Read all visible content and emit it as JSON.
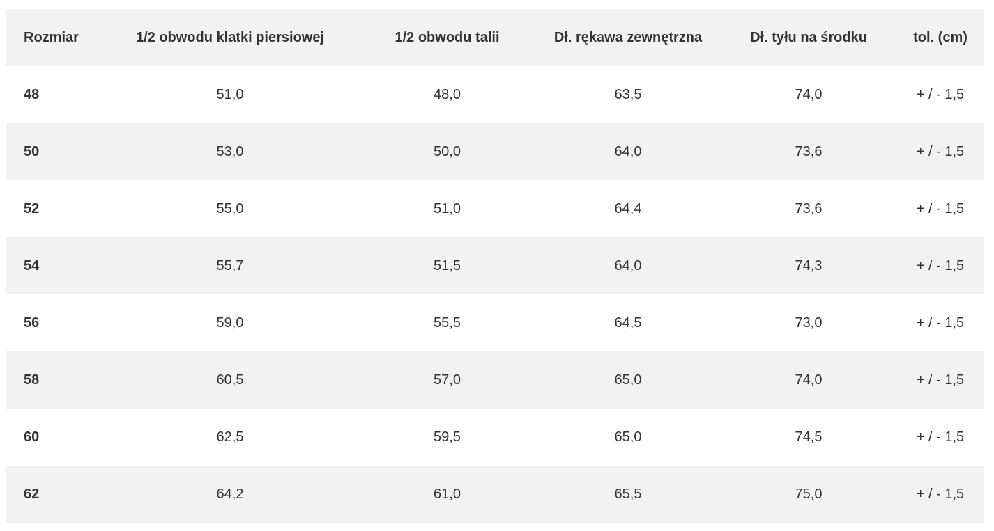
{
  "table": {
    "headers": [
      "Rozmiar",
      "1/2 obwodu klatki piersiowej",
      "1/2 obwodu talii",
      "Dł. rękawa zewnętrzna",
      "Dł. tyłu na środku",
      "tol. (cm)"
    ],
    "rows": [
      [
        "48",
        "51,0",
        "48,0",
        "63,5",
        "74,0",
        "+ / - 1,5"
      ],
      [
        "50",
        "53,0",
        "50,0",
        "64,0",
        "73,6",
        "+ / - 1,5"
      ],
      [
        "52",
        "55,0",
        "51,0",
        "64,4",
        "73,6",
        "+ / - 1,5"
      ],
      [
        "54",
        "55,7",
        "51,5",
        "64,0",
        "74,3",
        "+ / - 1,5"
      ],
      [
        "56",
        "59,0",
        "55,5",
        "64,5",
        "73,0",
        "+ / - 1,5"
      ],
      [
        "58",
        "60,5",
        "57,0",
        "65,0",
        "74,0",
        "+ / - 1,5"
      ],
      [
        "60",
        "62,5",
        "59,5",
        "65,0",
        "74,5",
        "+ / - 1,5"
      ],
      [
        "62",
        "64,2",
        "61,0",
        "65,5",
        "75,0",
        "+ / - 1,5"
      ]
    ]
  },
  "colors": {
    "header_background": "#f2f2f2",
    "stripe_background": "#f2f2f2",
    "text": "#333333"
  }
}
